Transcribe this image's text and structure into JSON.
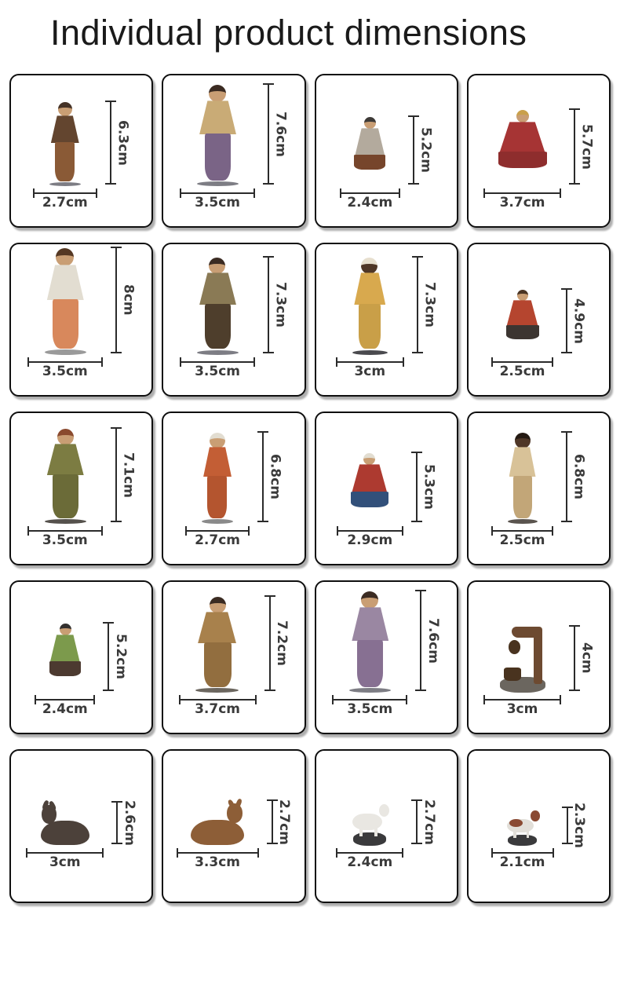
{
  "page": {
    "title": "Individual product dimensions",
    "background": "#ffffff",
    "dimension_line_color": "#2b2b2b",
    "dimension_text_color": "#3a3a3a"
  },
  "cards": [
    {
      "name": "figurine-standing-shepherd-boy",
      "height_label": "6.3cm",
      "width_label": "2.7cm",
      "height_cm": 6.3,
      "width_cm": 2.7,
      "shape": "standing",
      "colors": {
        "hair": "#453226",
        "skin": "#c99e74",
        "top": "#63452f",
        "bottom": "#8a5a36",
        "base": "#7d7d84"
      }
    },
    {
      "name": "figurine-joseph-standing",
      "height_label": "7.6cm",
      "width_label": "3.5cm",
      "height_cm": 7.6,
      "width_cm": 3.5,
      "shape": "standing",
      "colors": {
        "hair": "#3b2b22",
        "skin": "#c99e74",
        "top": "#c9ab76",
        "bottom": "#7a6486",
        "base": "#7d7d84"
      }
    },
    {
      "name": "figurine-kneeling-shepherd-with-lamb",
      "height_label": "5.2cm",
      "width_label": "2.4cm",
      "height_cm": 5.2,
      "width_cm": 2.4,
      "shape": "kneeling",
      "colors": {
        "hair": "#3d3a37",
        "skin": "#c99e74",
        "top": "#b3aa9d",
        "bottom": "#76452b"
      }
    },
    {
      "name": "figurine-kneeling-king-red",
      "height_label": "5.7cm",
      "width_label": "3.7cm",
      "height_cm": 5.7,
      "width_cm": 3.7,
      "shape": "kneeling",
      "colors": {
        "hair": "#c9a04b",
        "skin": "#c99e74",
        "top": "#a63434",
        "bottom": "#8e2d2d"
      }
    },
    {
      "name": "figurine-woman-with-child",
      "height_label": "8cm",
      "width_label": "3.5cm",
      "height_cm": 8,
      "width_cm": 3.5,
      "shape": "standing",
      "colors": {
        "hair": "#553823",
        "skin": "#c99e74",
        "top": "#e2ddd1",
        "bottom": "#d8885c",
        "base": "#9a9a9a"
      }
    },
    {
      "name": "figurine-shepherd-holding-lamb",
      "height_label": "7.3cm",
      "width_label": "3.5cm",
      "height_cm": 7.3,
      "width_cm": 3.5,
      "shape": "standing",
      "colors": {
        "hair": "#3b2b22",
        "skin": "#c99e74",
        "top": "#8a7a55",
        "bottom": "#4e3e2c",
        "base": "#7d7d84"
      }
    },
    {
      "name": "figurine-king-gold-and-green",
      "height_label": "7.3cm",
      "width_label": "3cm",
      "height_cm": 7.3,
      "width_cm": 3,
      "shape": "standing",
      "colors": {
        "hair": "#e7dfce",
        "skin": "#4f3727",
        "top": "#d8a94e",
        "bottom": "#c99f48",
        "base": "#4a4a4e"
      }
    },
    {
      "name": "figurine-flute-player-boy-with-lamb",
      "height_label": "4.9cm",
      "width_label": "2.5cm",
      "height_cm": 4.9,
      "width_cm": 2.5,
      "shape": "seated",
      "colors": {
        "hair": "#4a3423",
        "skin": "#c99e74",
        "top": "#b5452f",
        "bottom": "#3c3531"
      }
    },
    {
      "name": "figurine-man-green-robe",
      "height_label": "7.1cm",
      "width_label": "3.5cm",
      "height_cm": 7.1,
      "width_cm": 3.5,
      "shape": "standing",
      "colors": {
        "hair": "#8a4a2e",
        "skin": "#c99e74",
        "top": "#7c7c42",
        "bottom": "#6b6b38",
        "base": "#55514c"
      }
    },
    {
      "name": "figurine-woman-with-bucket",
      "height_label": "6.8cm",
      "width_label": "2.7cm",
      "height_cm": 6.8,
      "width_cm": 2.7,
      "shape": "standing",
      "colors": {
        "hair": "#e2ddd1",
        "skin": "#c99e74",
        "top": "#c35e35",
        "bottom": "#b4552f",
        "base": "#8a8a8a"
      }
    },
    {
      "name": "figurine-kneeling-mary",
      "height_label": "5.3cm",
      "width_label": "2.9cm",
      "height_cm": 5.3,
      "width_cm": 2.9,
      "shape": "kneeling",
      "colors": {
        "hair": "#e2ddd1",
        "skin": "#c99e74",
        "top": "#ad3a30",
        "bottom": "#32507a"
      }
    },
    {
      "name": "figurine-standing-man-tan-robe",
      "height_label": "6.8cm",
      "width_label": "2.5cm",
      "height_cm": 6.8,
      "width_cm": 2.5,
      "shape": "standing",
      "colors": {
        "hair": "#241a12",
        "skin": "#4f3727",
        "top": "#d8c298",
        "bottom": "#c2a678",
        "base": "#5a544e"
      }
    },
    {
      "name": "figurine-seated-bagpiper",
      "height_label": "5.2cm",
      "width_label": "2.4cm",
      "height_cm": 5.2,
      "width_cm": 2.4,
      "shape": "seated",
      "colors": {
        "hair": "#33302e",
        "skin": "#c99e74",
        "top": "#7c9a4c",
        "bottom": "#4c3a30"
      }
    },
    {
      "name": "figurine-man-brown-cloak-with-bagpipes",
      "height_label": "7.2cm",
      "width_label": "3.7cm",
      "height_cm": 7.2,
      "width_cm": 3.7,
      "shape": "standing",
      "colors": {
        "hair": "#3b2b22",
        "skin": "#c99e74",
        "top": "#a8814c",
        "bottom": "#926e3f",
        "base": "#6b665f"
      }
    },
    {
      "name": "figurine-joseph-with-lantern",
      "height_label": "7.6cm",
      "width_label": "3.5cm",
      "height_cm": 7.6,
      "width_cm": 3.5,
      "shape": "standing",
      "colors": {
        "hair": "#3b2b22",
        "skin": "#c99e74",
        "top": "#9a87a2",
        "bottom": "#877092",
        "base": "#7d7d84"
      }
    },
    {
      "name": "figurine-water-well",
      "height_label": "4cm",
      "width_label": "3cm",
      "height_cm": 4,
      "width_cm": 3,
      "shape": "object-well",
      "colors": {
        "body": "#6d4a31",
        "accent": "#49331f",
        "rock": "#6b665f"
      }
    },
    {
      "name": "figurine-donkey-lying",
      "height_label": "2.6cm",
      "width_label": "3cm",
      "height_cm": 2.6,
      "width_cm": 3,
      "shape": "animal-lying",
      "head_side": "left",
      "colors": {
        "body": "#4c413a"
      }
    },
    {
      "name": "figurine-ox-lying",
      "height_label": "2.7cm",
      "width_label": "3.3cm",
      "height_cm": 2.7,
      "width_cm": 3.3,
      "shape": "animal-lying",
      "head_side": "right",
      "colors": {
        "body": "#8d5e37"
      }
    },
    {
      "name": "figurine-sheep-on-rock",
      "height_label": "2.7cm",
      "width_label": "2.4cm",
      "height_cm": 2.7,
      "width_cm": 2.4,
      "shape": "animal-standing",
      "head_side": "right",
      "colors": {
        "body": "#e9e7e2",
        "rock": "#3a3a3c"
      }
    },
    {
      "name": "figurine-dog-on-rock",
      "height_label": "2.3cm",
      "width_label": "2.1cm",
      "height_cm": 2.3,
      "width_cm": 2.1,
      "shape": "animal-standing",
      "head_side": "right",
      "colors": {
        "body": "#e2dfd9",
        "patch": "#8a4a33",
        "rock": "#3a3a3c"
      }
    }
  ]
}
